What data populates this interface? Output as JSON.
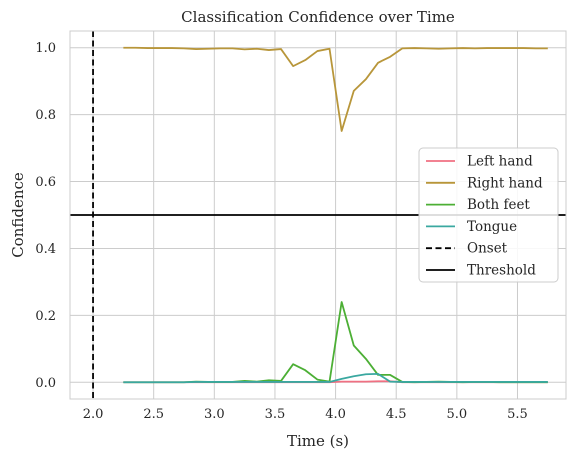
{
  "chart_data": {
    "type": "line",
    "title": "Classification Confidence over Time",
    "xlabel": "Time (s)",
    "ylabel": "Confidence",
    "xlim": [
      1.81,
      5.9
    ],
    "ylim": [
      -0.05,
      1.05
    ],
    "xticks": [
      "2.0",
      "2.5",
      "3.0",
      "3.5",
      "4.0",
      "4.5",
      "5.0",
      "5.5"
    ],
    "yticks": [
      "0.0",
      "0.2",
      "0.4",
      "0.6",
      "0.8",
      "1.0"
    ],
    "grid": true,
    "legend_position": "center-right",
    "x": [
      2.25,
      2.35,
      2.45,
      2.55,
      2.65,
      2.75,
      2.85,
      2.95,
      3.05,
      3.15,
      3.25,
      3.35,
      3.45,
      3.55,
      3.65,
      3.75,
      3.85,
      3.95,
      4.05,
      4.15,
      4.25,
      4.35,
      4.45,
      4.55,
      4.65,
      4.75,
      4.85,
      4.95,
      5.05,
      5.15,
      5.25,
      5.35,
      5.45,
      5.55,
      5.65,
      5.75
    ],
    "series": [
      {
        "name": "Left hand",
        "color": "#f07082",
        "values": [
          0.0,
          0.0,
          0.0,
          0.0,
          0.0,
          0.0,
          0.0,
          0.0,
          0.0,
          0.0,
          0.0,
          0.0,
          0.0,
          0.0,
          0.0,
          0.0,
          0.0,
          0.0,
          0.002,
          0.002,
          0.002,
          0.003,
          0.003,
          0.0,
          0.0,
          0.0,
          0.0,
          0.0,
          0.0,
          0.0,
          0.0,
          0.0,
          0.0,
          0.0,
          0.0,
          0.0
        ]
      },
      {
        "name": "Right hand",
        "color": "#b8963a",
        "values": [
          1.0,
          1.0,
          0.999,
          0.999,
          0.999,
          0.998,
          0.996,
          0.997,
          0.998,
          0.998,
          0.995,
          0.997,
          0.993,
          0.996,
          0.945,
          0.963,
          0.99,
          0.997,
          0.751,
          0.871,
          0.906,
          0.955,
          0.973,
          0.998,
          0.999,
          0.998,
          0.997,
          0.998,
          0.999,
          0.998,
          0.999,
          0.999,
          0.999,
          0.999,
          0.998,
          0.998
        ]
      },
      {
        "name": "Both feet",
        "color": "#4caf35",
        "values": [
          0.0,
          0.0,
          0.0,
          0.0,
          0.0,
          0.0,
          0.002,
          0.001,
          0.001,
          0.001,
          0.004,
          0.002,
          0.006,
          0.004,
          0.054,
          0.036,
          0.008,
          0.002,
          0.24,
          0.11,
          0.07,
          0.022,
          0.022,
          0.001,
          0.0,
          0.001,
          0.002,
          0.001,
          0.0,
          0.001,
          0.001,
          0.0,
          0.0,
          0.0,
          0.0,
          0.0
        ]
      },
      {
        "name": "Tongue",
        "color": "#3aa8a0",
        "values": [
          0.0,
          0.0,
          0.0,
          0.0,
          0.0,
          0.0,
          0.001,
          0.001,
          0.001,
          0.001,
          0.001,
          0.001,
          0.001,
          0.001,
          0.001,
          0.001,
          0.001,
          0.001,
          0.01,
          0.018,
          0.024,
          0.025,
          0.002,
          0.001,
          0.001,
          0.001,
          0.001,
          0.001,
          0.001,
          0.001,
          0.001,
          0.001,
          0.001,
          0.001,
          0.001,
          0.001
        ]
      }
    ],
    "reference_lines": [
      {
        "name": "Onset",
        "orientation": "vertical",
        "value": 2.0,
        "style": "dashed",
        "color": "#000000"
      },
      {
        "name": "Threshold",
        "orientation": "horizontal",
        "value": 0.5,
        "style": "solid",
        "color": "#000000"
      }
    ],
    "colors": {
      "grid": "#cccccc",
      "axes_edge": "#cccccc",
      "text": "#262626",
      "background": "#ffffff"
    }
  }
}
